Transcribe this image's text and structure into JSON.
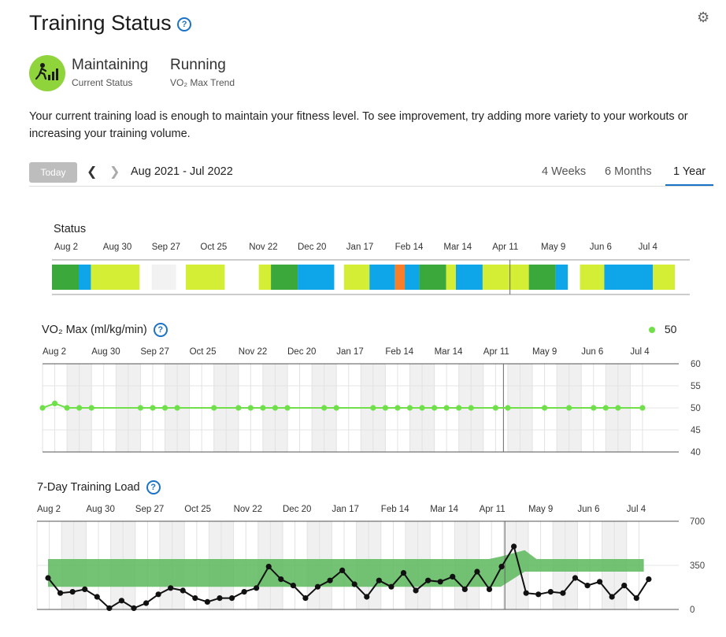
{
  "header": {
    "title": "Training Status",
    "help_icon": "?"
  },
  "status": {
    "value": "Maintaining",
    "label": "Current Status",
    "vo2_value": "Running",
    "vo2_label": "VO₂ Max Trend",
    "icon": "runner-bars-icon",
    "badge_color": "#8fd43a"
  },
  "description": "Your current training load is enough to maintain your fitness level. To see improvement, try adding more variety to your workouts or increasing your training volume.",
  "toolbar": {
    "today_label": "Today",
    "range_label": "Aug 2021 - Jul 2022",
    "tabs": [
      {
        "label": "4 Weeks",
        "active": false
      },
      {
        "label": "6 Months",
        "active": false
      },
      {
        "label": "1 Year",
        "active": true
      }
    ]
  },
  "colors": {
    "productive": "#d4ee36",
    "maintaining": "#3aa83a",
    "recovery": "#0ea5e9",
    "unproductive": "#f97e2a",
    "empty": "#f2f2f2",
    "vo2": "#6fe04a",
    "load_band": "#5cb85c"
  },
  "months": [
    "Aug 2",
    "Aug 30",
    "Sep 27",
    "Oct 25",
    "Nov 22",
    "Dec 20",
    "Jan 17",
    "Feb 14",
    "Mar 14",
    "Apr 11",
    "May 9",
    "Jun 6",
    "Jul 4"
  ],
  "status_chart": {
    "title": "Status",
    "segments": [
      {
        "from": 0,
        "to": 2.2,
        "state": "maintaining"
      },
      {
        "from": 2.2,
        "to": 3.2,
        "state": "recovery"
      },
      {
        "from": 3.2,
        "to": 7.2,
        "state": "productive"
      },
      {
        "from": 8.2,
        "to": 10.2,
        "state": "empty"
      },
      {
        "from": 11,
        "to": 14.2,
        "state": "productive"
      },
      {
        "from": 17,
        "to": 18,
        "state": "productive"
      },
      {
        "from": 18,
        "to": 20.2,
        "state": "maintaining"
      },
      {
        "from": 20.2,
        "to": 23.2,
        "state": "recovery"
      },
      {
        "from": 24,
        "to": 26.1,
        "state": "productive"
      },
      {
        "from": 26.1,
        "to": 28.2,
        "state": "recovery"
      },
      {
        "from": 28.2,
        "to": 29,
        "state": "unproductive"
      },
      {
        "from": 29,
        "to": 30.2,
        "state": "recovery"
      },
      {
        "from": 30.2,
        "to": 32.4,
        "state": "maintaining"
      },
      {
        "from": 32.4,
        "to": 33.2,
        "state": "productive"
      },
      {
        "from": 33.2,
        "to": 35.4,
        "state": "recovery"
      },
      {
        "from": 35.4,
        "to": 39.2,
        "state": "productive"
      },
      {
        "from": 39.2,
        "to": 41.4,
        "state": "maintaining"
      },
      {
        "from": 41.4,
        "to": 42.4,
        "state": "recovery"
      },
      {
        "from": 43.4,
        "to": 45.4,
        "state": "productive"
      },
      {
        "from": 45.4,
        "to": 49.4,
        "state": "recovery"
      },
      {
        "from": 49.4,
        "to": 51.2,
        "state": "productive"
      }
    ],
    "marker_week": 37
  },
  "vo2_chart": {
    "title": "VO₂ Max (ml/kg/min)",
    "legend_value": "50",
    "y_ticks": [
      "60",
      "55",
      "50",
      "45",
      "40"
    ],
    "ylim": [
      40,
      60
    ],
    "points": [
      [
        0,
        50
      ],
      [
        1,
        51
      ],
      [
        2,
        50
      ],
      [
        3,
        50
      ],
      [
        4,
        50
      ],
      [
        8,
        50
      ],
      [
        9,
        50
      ],
      [
        10,
        50
      ],
      [
        11,
        50
      ],
      [
        14,
        50
      ],
      [
        16,
        50
      ],
      [
        17,
        50
      ],
      [
        18,
        50
      ],
      [
        19,
        50
      ],
      [
        20,
        50
      ],
      [
        23,
        50
      ],
      [
        24,
        50
      ],
      [
        27,
        50
      ],
      [
        28,
        50
      ],
      [
        29,
        50
      ],
      [
        30,
        50
      ],
      [
        31,
        50
      ],
      [
        32,
        50
      ],
      [
        33,
        50
      ],
      [
        34,
        50
      ],
      [
        35,
        50
      ],
      [
        37,
        50
      ],
      [
        38,
        50
      ],
      [
        41,
        50
      ],
      [
        43,
        50
      ],
      [
        45,
        50
      ],
      [
        46,
        50
      ],
      [
        47,
        50
      ],
      [
        49,
        50
      ]
    ],
    "marker_week": 37
  },
  "load_chart": {
    "title": "7-Day Training Load",
    "y_ticks": [
      "700",
      "350",
      "0"
    ],
    "ylim": [
      0,
      700
    ],
    "band_low": [
      [
        0,
        180
      ],
      [
        37,
        180
      ],
      [
        38,
        180
      ],
      [
        40,
        300
      ],
      [
        49,
        300
      ],
      [
        50,
        300
      ]
    ],
    "band_high": [
      [
        0,
        400
      ],
      [
        37,
        400
      ],
      [
        38,
        420
      ],
      [
        40,
        470
      ],
      [
        41,
        400
      ],
      [
        50,
        400
      ]
    ],
    "values": [
      250,
      130,
      140,
      160,
      100,
      10,
      70,
      10,
      50,
      120,
      170,
      150,
      90,
      60,
      90,
      90,
      140,
      170,
      340,
      240,
      190,
      90,
      180,
      230,
      310,
      200,
      100,
      230,
      180,
      290,
      150,
      230,
      220,
      260,
      160,
      300,
      160,
      340,
      500,
      130,
      120,
      140,
      130,
      250,
      190,
      220,
      100,
      190,
      90,
      240
    ],
    "marker_week": 37
  }
}
